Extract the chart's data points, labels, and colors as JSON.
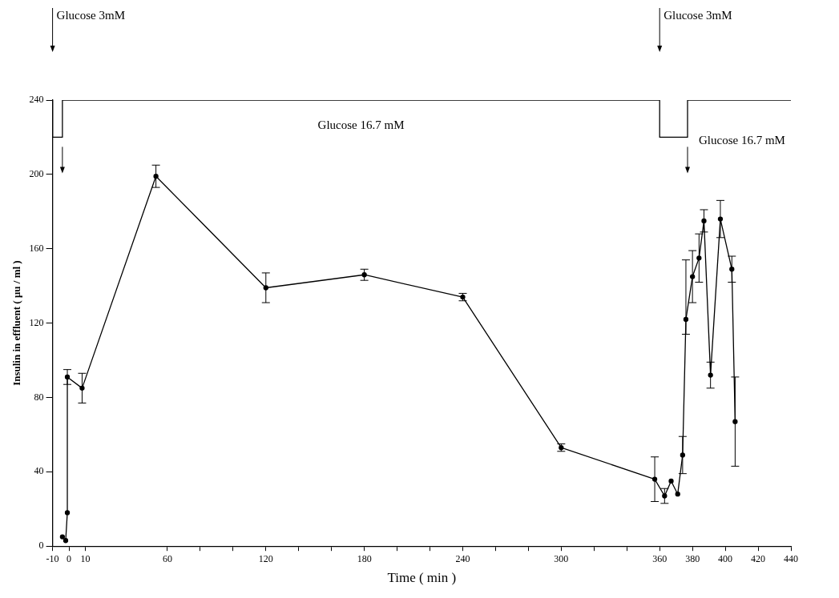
{
  "chart_data": {
    "type": "line",
    "xlabel": "Time ( min )",
    "ylabel": "Insulin in effluent ( μu / ml )",
    "xlim": [
      -10,
      440
    ],
    "xticks": [
      -10,
      0,
      10,
      60,
      {
        "value": 80,
        "label": null
      },
      {
        "value": 100,
        "label": null
      },
      120,
      {
        "value": 140,
        "label": null
      },
      {
        "value": 160,
        "label": null
      },
      180,
      {
        "value": 200,
        "label": null
      },
      {
        "value": 220,
        "label": null
      },
      240,
      {
        "value": 260,
        "label": null
      },
      {
        "value": 280,
        "label": null
      },
      300,
      {
        "value": 320,
        "label": null
      },
      {
        "value": 340,
        "label": null
      },
      360,
      380,
      400,
      420,
      440
    ],
    "ylim": [
      0,
      240
    ],
    "yticks": [
      0,
      40,
      80,
      120,
      160,
      200,
      240
    ],
    "grid": false,
    "legend": false,
    "marker": "circle",
    "line_style": "solid",
    "series": [
      {
        "type": "line",
        "color": "#000000",
        "x": [
          -4,
          -2,
          -1,
          -1,
          8,
          53,
          120,
          180,
          240,
          300,
          357,
          363,
          367,
          371,
          374,
          376,
          380,
          384,
          387,
          391,
          397,
          404,
          406
        ],
        "values": [
          5,
          3,
          18,
          91,
          85,
          199,
          139,
          146,
          134,
          53,
          36,
          27,
          35,
          28,
          49,
          122,
          145,
          155,
          175,
          92,
          176,
          149,
          67
        ],
        "errors": [
          null,
          null,
          null,
          4,
          8,
          6,
          8,
          3,
          2,
          2,
          12,
          4,
          null,
          null,
          10,
          [
            114,
            154
          ],
          14,
          13,
          6,
          7,
          10,
          7,
          24
        ]
      },
      {
        "type": "step",
        "color": "#000000",
        "marker": "none",
        "x": [
          -10,
          -10,
          -4,
          360,
          377,
          440
        ],
        "values": [
          240,
          220,
          240,
          220,
          240,
          240
        ]
      }
    ],
    "annotations": [
      "Glucose 3mM",
      "Glucose 16.7 mM",
      "Glucose 3mM",
      "Glucose 16.7 mM"
    ]
  }
}
